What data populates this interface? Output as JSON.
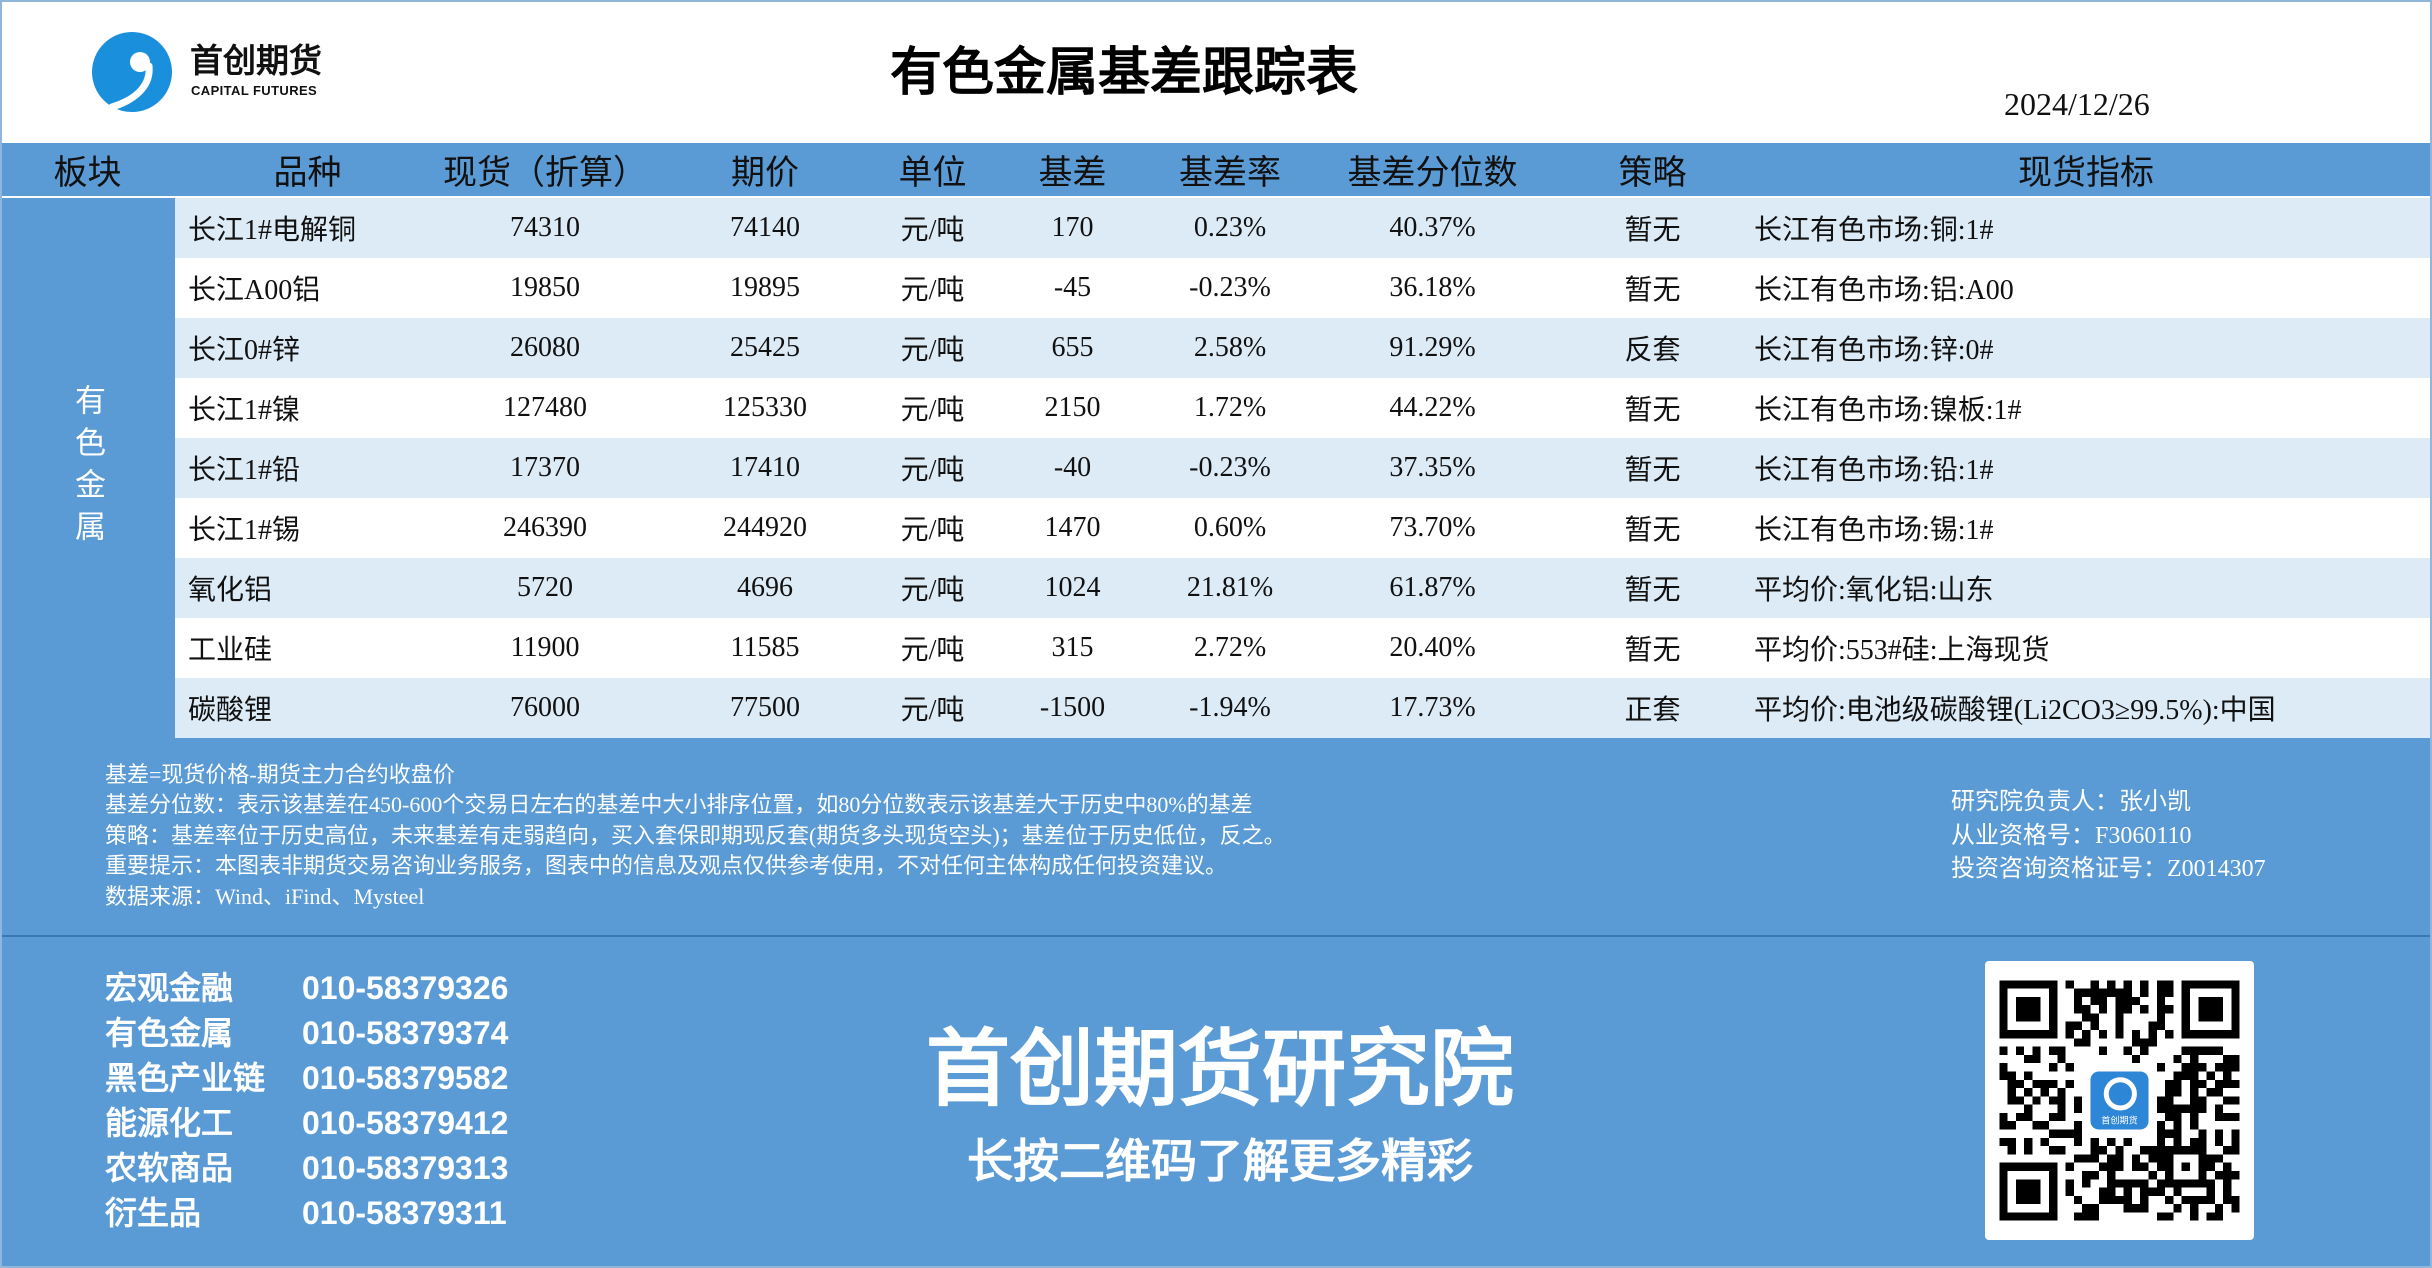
{
  "header": {
    "logo": {
      "name_cn": "首创期货",
      "name_en": "CAPITAL FUTURES",
      "icon": "capital-futures-logo-icon"
    },
    "title": "有色金属基差跟踪表",
    "date": "2024/12/26"
  },
  "table": {
    "columns": [
      "板块",
      "品种",
      "现货（折算）",
      "期价",
      "单位",
      "基差",
      "基差率",
      "基差分位数",
      "策略",
      "现货指标"
    ],
    "sector": "有色金属",
    "rows": [
      {
        "variety": "长江1#电解铜",
        "spot": 74310,
        "futures": 74140,
        "unit": "元/吨",
        "basis": 170,
        "basis_rate": "0.23%",
        "basis_percentile": "40.37%",
        "strategy": "暂无",
        "indicator": "长江有色市场:铜:1#"
      },
      {
        "variety": "长江A00铝",
        "spot": 19850,
        "futures": 19895,
        "unit": "元/吨",
        "basis": -45,
        "basis_rate": "-0.23%",
        "basis_percentile": "36.18%",
        "strategy": "暂无",
        "indicator": "长江有色市场:铝:A00"
      },
      {
        "variety": "长江0#锌",
        "spot": 26080,
        "futures": 25425,
        "unit": "元/吨",
        "basis": 655,
        "basis_rate": "2.58%",
        "basis_percentile": "91.29%",
        "strategy": "反套",
        "indicator": "长江有色市场:锌:0#"
      },
      {
        "variety": "长江1#镍",
        "spot": 127480,
        "futures": 125330,
        "unit": "元/吨",
        "basis": 2150,
        "basis_rate": "1.72%",
        "basis_percentile": "44.22%",
        "strategy": "暂无",
        "indicator": "长江有色市场:镍板:1#"
      },
      {
        "variety": "长江1#铅",
        "spot": 17370,
        "futures": 17410,
        "unit": "元/吨",
        "basis": -40,
        "basis_rate": "-0.23%",
        "basis_percentile": "37.35%",
        "strategy": "暂无",
        "indicator": "长江有色市场:铅:1#"
      },
      {
        "variety": "长江1#锡",
        "spot": 246390,
        "futures": 244920,
        "unit": "元/吨",
        "basis": 1470,
        "basis_rate": "0.60%",
        "basis_percentile": "73.70%",
        "strategy": "暂无",
        "indicator": "长江有色市场:锡:1#"
      },
      {
        "variety": "氧化铝",
        "spot": 5720,
        "futures": 4696,
        "unit": "元/吨",
        "basis": 1024,
        "basis_rate": "21.81%",
        "basis_percentile": "61.87%",
        "strategy": "暂无",
        "indicator": "平均价:氧化铝:山东"
      },
      {
        "variety": "工业硅",
        "spot": 11900,
        "futures": 11585,
        "unit": "元/吨",
        "basis": 315,
        "basis_rate": "2.72%",
        "basis_percentile": "20.40%",
        "strategy": "暂无",
        "indicator": "平均价:553#硅:上海现货"
      },
      {
        "variety": "碳酸锂",
        "spot": 76000,
        "futures": 77500,
        "unit": "元/吨",
        "basis": -1500,
        "basis_rate": "-1.94%",
        "basis_percentile": "17.73%",
        "strategy": "正套",
        "indicator": "平均价:电池级碳酸锂(Li2CO3≥99.5%):中国"
      }
    ]
  },
  "notes": {
    "lines": [
      "基差=现货价格-期货主力合约收盘价",
      "基差分位数：表示该基差在450-600个交易日左右的基差中大小排序位置，如80分位数表示该基差大于历史中80%的基差",
      "策略：基差率位于历史高位，未来基差有走弱趋向，买入套保即期现反套(期货多头现货空头)；基差位于历史低位，反之。",
      "重要提示：本图表非期货交易咨询业务服务，图表中的信息及观点仅供参考使用，不对任何主体构成任何投资建议。",
      "数据来源：Wind、iFind、Mysteel"
    ],
    "research_contacts": [
      "研究院负责人：张小凯",
      "从业资格号：F3060110",
      "投资咨询资格证号：Z0014307"
    ]
  },
  "footer": {
    "contacts": [
      {
        "dept": "宏观金融",
        "phone": "010-58379326"
      },
      {
        "dept": "有色金属",
        "phone": "010-58379374"
      },
      {
        "dept": "黑色产业链",
        "phone": "010-58379582"
      },
      {
        "dept": "能源化工",
        "phone": "010-58379412"
      },
      {
        "dept": "农软商品",
        "phone": "010-58379313"
      },
      {
        "dept": "衍生品",
        "phone": "010-58379311"
      }
    ],
    "brand": "首创期货研究院",
    "slogan": "长按二维码了解更多精彩",
    "qr": {
      "icon": "qr-code-icon",
      "logo_text": "首创期货"
    }
  },
  "colors": {
    "primary_blue": "#5b9bd5",
    "stripe_light_blue": "#ddebf7",
    "logo_blue": "#1a8fdc",
    "separator_blue": "#3a78b5",
    "text_dark": "#111111"
  }
}
